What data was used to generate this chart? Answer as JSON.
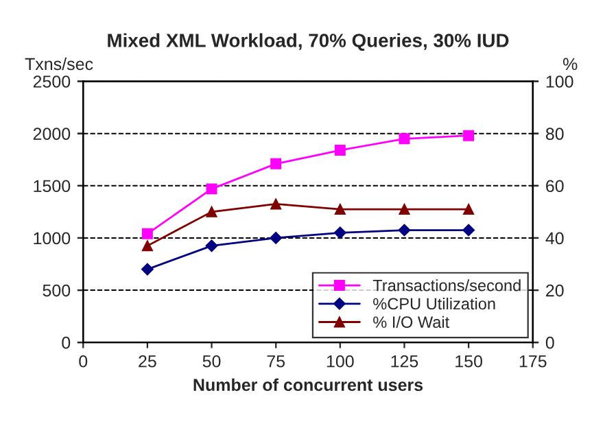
{
  "chart_data": {
    "type": "line",
    "title": "Mixed XML Workload, 70% Queries, 30% IUD",
    "xlabel": "Number of concurrent users",
    "ylabel": "Txns/sec",
    "y2label": "%",
    "x": [
      25,
      50,
      75,
      100,
      125,
      150
    ],
    "series": [
      {
        "name": "Transactions/second",
        "color": "#ff00ff",
        "marker": "square",
        "values": [
          1040,
          1470,
          1710,
          1840,
          1950,
          1980
        ]
      },
      {
        "name": "%CPU Utilization",
        "color": "#000080",
        "marker": "diamond",
        "axis": "y2",
        "values": [
          28,
          37,
          40,
          42,
          43,
          43
        ]
      },
      {
        "name": "% I/O Wait",
        "color": "#800000",
        "marker": "triangle",
        "axis": "y2",
        "values": [
          37,
          50,
          53,
          51,
          51,
          51
        ]
      }
    ],
    "xlim": [
      0,
      175
    ],
    "xticks": [
      0,
      25,
      50,
      75,
      100,
      125,
      150,
      175
    ],
    "ylim": [
      0,
      2500
    ],
    "yticks": [
      0,
      500,
      1000,
      1500,
      2000,
      2500
    ],
    "y2lim": [
      0,
      100
    ],
    "y2ticks": [
      0,
      20,
      40,
      60,
      80,
      100
    ],
    "grid": "y",
    "legend": "bottom right",
    "line_style": "solid"
  }
}
